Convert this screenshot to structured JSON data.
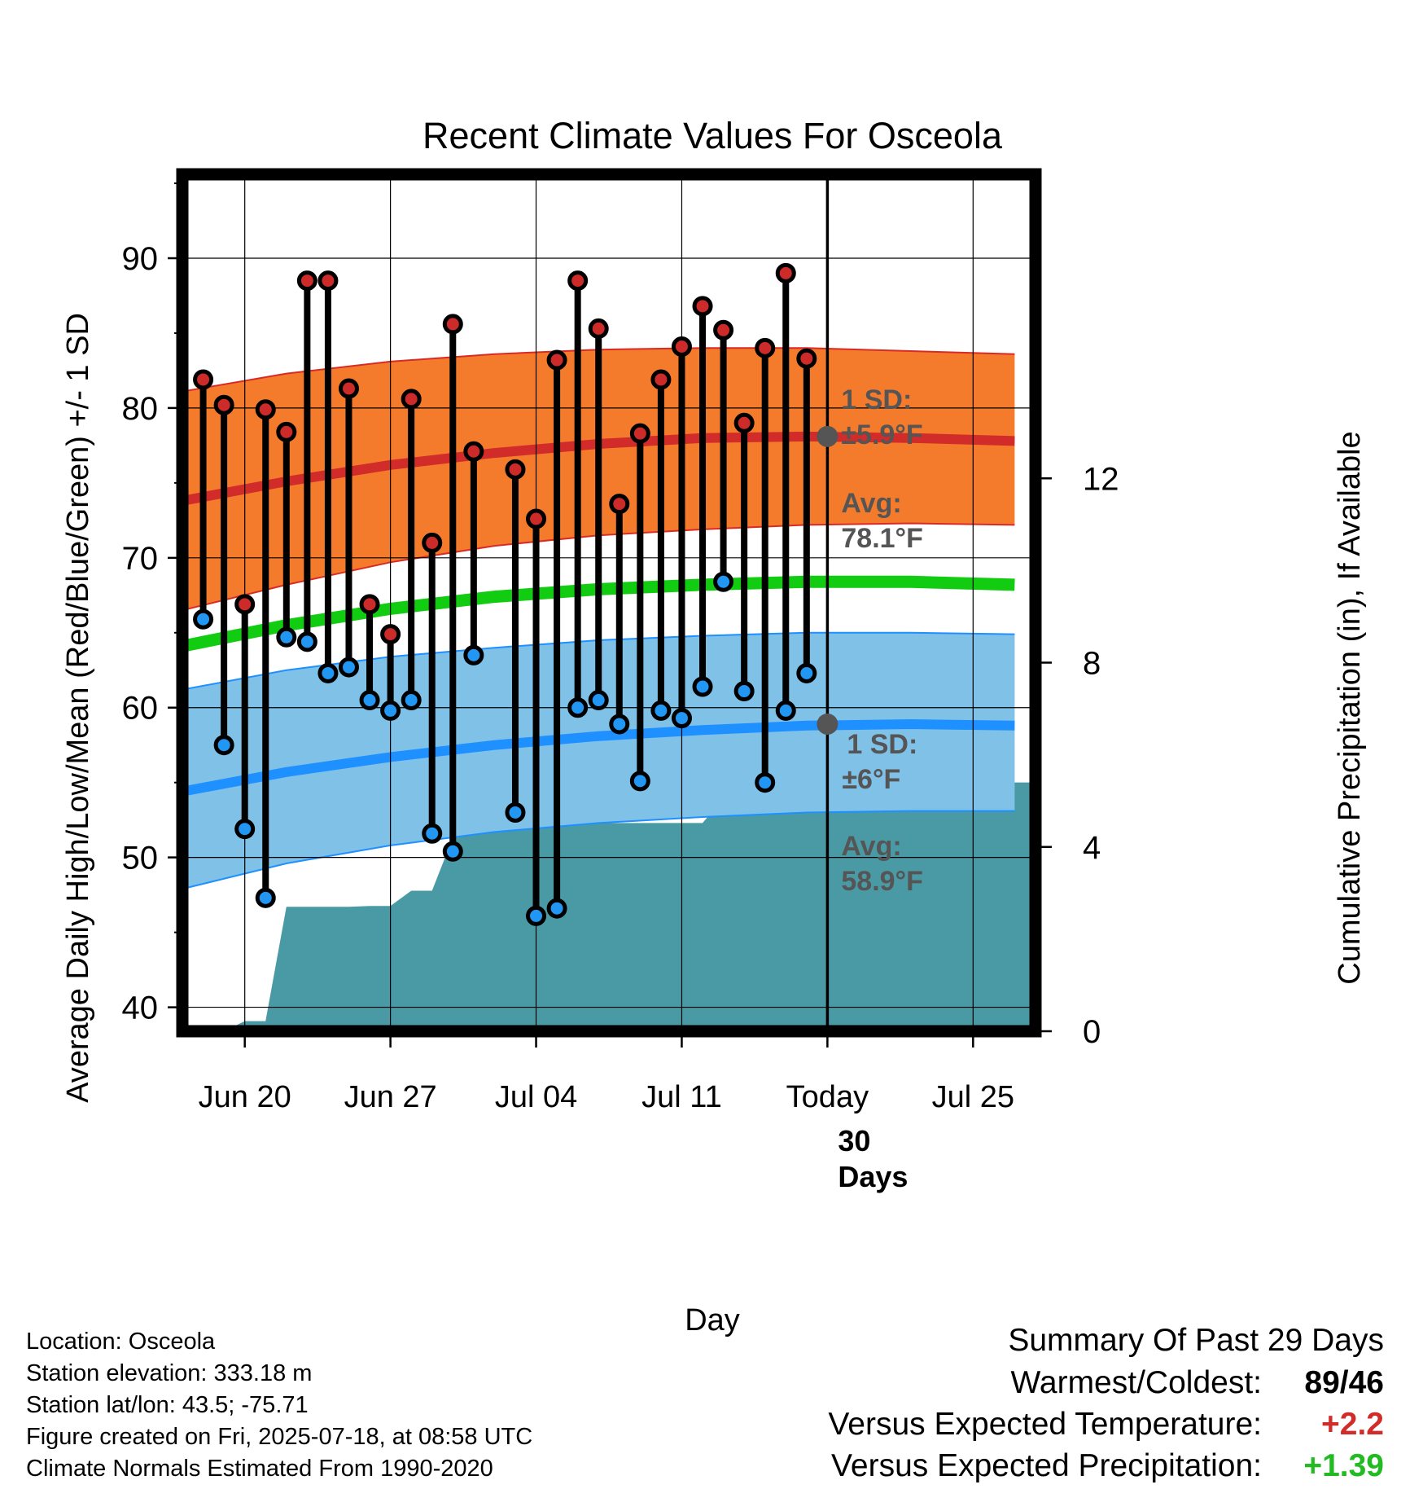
{
  "chart_data": {
    "type": "line",
    "title": "Recent Climate Values For Osceola",
    "xlabel": "Day",
    "ylabel": "Average Daily High/Low/Mean (Red/Blue/Green) +/- 1 SD",
    "y2label": "Cumulative Precipitation (in), If Available",
    "ylim": [
      38.4,
      95.6
    ],
    "y2lim": [
      0,
      18.6
    ],
    "xlim": [
      "2025-06-17",
      "2025-07-28"
    ],
    "yticks": [
      40,
      50,
      60,
      70,
      80,
      90
    ],
    "y2ticks": [
      0,
      4,
      8,
      12
    ],
    "xticks": [
      {
        "date": "2025-06-20",
        "label": "Jun 20"
      },
      {
        "date": "2025-06-27",
        "label": "Jun 27"
      },
      {
        "date": "2025-07-04",
        "label": "Jul 04"
      },
      {
        "date": "2025-07-11",
        "label": "Jul 11"
      },
      {
        "date": "2025-07-18",
        "label": "Today"
      },
      {
        "date": "2025-07-25",
        "label": "Jul 25"
      }
    ],
    "today": "2025-07-18",
    "grid": true,
    "observed": {
      "dates": [
        "2025-06-18",
        "2025-06-19",
        "2025-06-20",
        "2025-06-21",
        "2025-06-22",
        "2025-06-23",
        "2025-06-24",
        "2025-06-25",
        "2025-06-26",
        "2025-06-27",
        "2025-06-28",
        "2025-06-29",
        "2025-06-30",
        "2025-07-01",
        "2025-07-03",
        "2025-07-04",
        "2025-07-05",
        "2025-07-06",
        "2025-07-07",
        "2025-07-08",
        "2025-07-09",
        "2025-07-10",
        "2025-07-11",
        "2025-07-12",
        "2025-07-13",
        "2025-07-14",
        "2025-07-15",
        "2025-07-16",
        "2025-07-17"
      ],
      "highs": [
        81.9,
        80.2,
        66.9,
        79.9,
        78.4,
        88.5,
        88.5,
        81.3,
        66.9,
        64.9,
        80.6,
        71.0,
        85.6,
        77.1,
        75.9,
        72.6,
        83.2,
        88.5,
        85.3,
        73.6,
        78.3,
        81.9,
        84.1,
        86.8,
        85.2,
        79.0,
        84.0,
        89.0,
        83.3
      ],
      "lows": [
        65.9,
        57.5,
        51.9,
        47.3,
        64.7,
        64.4,
        62.3,
        62.7,
        60.5,
        59.8,
        60.5,
        51.6,
        50.4,
        63.5,
        53.0,
        46.1,
        46.6,
        60.0,
        60.5,
        58.9,
        55.1,
        59.8,
        59.3,
        61.4,
        68.4,
        61.1,
        55.0,
        59.8,
        62.3
      ]
    },
    "normals": {
      "dates": [
        "2025-06-17",
        "2025-06-22",
        "2025-06-27",
        "2025-07-02",
        "2025-07-07",
        "2025-07-12",
        "2025-07-17",
        "2025-07-22",
        "2025-07-27"
      ],
      "high_mean": [
        73.8,
        75.1,
        76.2,
        77.0,
        77.6,
        78.0,
        78.1,
        78.0,
        77.8
      ],
      "high_upper": [
        81.1,
        82.3,
        83.1,
        83.6,
        83.9,
        84.0,
        84.0,
        83.8,
        83.6
      ],
      "high_lower": [
        66.5,
        68.2,
        69.7,
        70.8,
        71.5,
        71.9,
        72.2,
        72.3,
        72.2
      ],
      "mean": [
        64.1,
        65.5,
        66.6,
        67.4,
        67.9,
        68.2,
        68.4,
        68.4,
        68.2
      ],
      "low_mean": [
        54.4,
        55.7,
        56.7,
        57.5,
        58.1,
        58.5,
        58.8,
        58.9,
        58.8
      ],
      "low_upper": [
        61.2,
        62.5,
        63.4,
        64.0,
        64.5,
        64.8,
        65.0,
        65.0,
        64.9
      ],
      "low_lower": [
        47.9,
        49.6,
        50.8,
        51.7,
        52.3,
        52.7,
        53.0,
        53.1,
        53.1
      ]
    },
    "precipitation": {
      "dates": [
        "2025-06-18",
        "2025-06-19",
        "2025-06-20",
        "2025-06-21",
        "2025-06-22",
        "2025-06-23",
        "2025-06-24",
        "2025-06-25",
        "2025-06-26",
        "2025-06-27",
        "2025-06-28",
        "2025-06-29",
        "2025-06-30",
        "2025-07-01",
        "2025-07-03",
        "2025-07-04",
        "2025-07-05",
        "2025-07-06",
        "2025-07-07",
        "2025-07-08",
        "2025-07-09",
        "2025-07-10",
        "2025-07-11",
        "2025-07-12",
        "2025-07-13",
        "2025-07-14",
        "2025-07-15",
        "2025-07-16",
        "2025-07-17",
        "2025-07-18",
        "2025-07-28"
      ],
      "cumulative": [
        0.0,
        0.0,
        0.22,
        0.22,
        2.7,
        2.7,
        2.7,
        2.7,
        2.72,
        2.72,
        3.05,
        3.05,
        4.2,
        4.35,
        4.48,
        4.48,
        4.48,
        4.48,
        4.52,
        4.52,
        4.52,
        4.52,
        4.52,
        4.52,
        5.05,
        5.05,
        5.05,
        5.1,
        5.4,
        5.4,
        5.4
      ]
    },
    "annotations": {
      "high_sd": {
        "label": "1 SD:",
        "value": "±5.9°F"
      },
      "high_avg": {
        "label": "Avg:",
        "value": "78.1°F",
        "y": 78.1
      },
      "low_sd": {
        "label": "1 SD:",
        "value": "±6°F"
      },
      "low_avg": {
        "label": "Avg:",
        "value": "58.9°F",
        "y": 58.9
      },
      "period": {
        "count": "30",
        "unit": "Days"
      }
    },
    "colors": {
      "high_band": "#f47b2c",
      "high_band_edge": "#d92b25",
      "high_mean": "#d12b2a",
      "mean_line": "#11cc11",
      "low_band": "#80c1e8",
      "low_band_edge": "#1e90ff",
      "low_mean": "#1e90ff",
      "precip": "#4a9aa5",
      "high_marker": "#cd2a2a",
      "low_marker": "#2196f3",
      "annotation": "#555555"
    }
  },
  "footer": {
    "location": "Location: Osceola",
    "elevation": "Station elevation: 333.18 m",
    "latlon": "Station lat/lon: 43.5; -75.71",
    "created": "Figure created on Fri, 2025-07-18, at 08:58 UTC",
    "normals": "Climate Normals Estimated From 1990-2020"
  },
  "summary": {
    "title": "Summary Of Past 29 Days",
    "warmest_label": "Warmest/Coldest:",
    "warmest_value": "89",
    "coldest_value": "46",
    "temp_label": "Versus Expected Temperature:",
    "temp_value": "+2.2",
    "temp_color": "#d12b2a",
    "precip_label": "Versus Expected Precipitation:",
    "precip_value": "+1.39",
    "precip_color": "#22bb22"
  }
}
